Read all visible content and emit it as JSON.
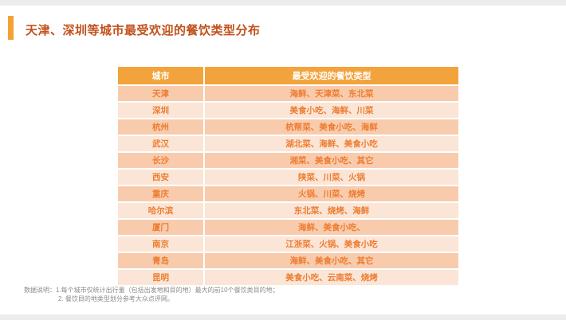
{
  "slide": {
    "title": "天津、深圳等城市最受欢迎的餐饮类型分布"
  },
  "table": {
    "headers": [
      "城市",
      "最受欢迎的餐饮类型"
    ],
    "rows": [
      {
        "city": "天津",
        "types": "海鲜、天津菜、东北菜"
      },
      {
        "city": "深圳",
        "types": "美食小吃、海鲜、川菜"
      },
      {
        "city": "杭州",
        "types": "杭帮菜、美食小吃、海鲜"
      },
      {
        "city": "武汉",
        "types": "湖北菜、海鲜、美食小吃"
      },
      {
        "city": "长沙",
        "types": "湘菜、美食小吃、其它"
      },
      {
        "city": "西安",
        "types": "陕菜、川菜、火锅"
      },
      {
        "city": "重庆",
        "types": "火锅、川菜、烧烤"
      },
      {
        "city": "哈尔滨",
        "types": "东北菜、烧烤、海鲜"
      },
      {
        "city": "厦门",
        "types": "海鲜、美食小吃、"
      },
      {
        "city": "南京",
        "types": "江浙菜、火锅、美食小吃"
      },
      {
        "city": "青岛",
        "types": "海鲜、美食小吃、其它"
      },
      {
        "city": "昆明",
        "types": "美食小吃、云南菜、烧烤"
      }
    ]
  },
  "footnote": {
    "line1": "数据说明：1.每个城市仅统计出行量（包括出发地和目的地）最大的前10个餐饮类目的地；",
    "line2": "2. 餐饮目的地类型划分参考大众点评网。"
  },
  "colors": {
    "accent": "#F5A234",
    "title_color": "#C2511B",
    "header_bg": "#F2A33C",
    "row_odd": "#F8CBAD",
    "row_even": "#FBE5D6",
    "cell_text": "#ED7D31"
  }
}
